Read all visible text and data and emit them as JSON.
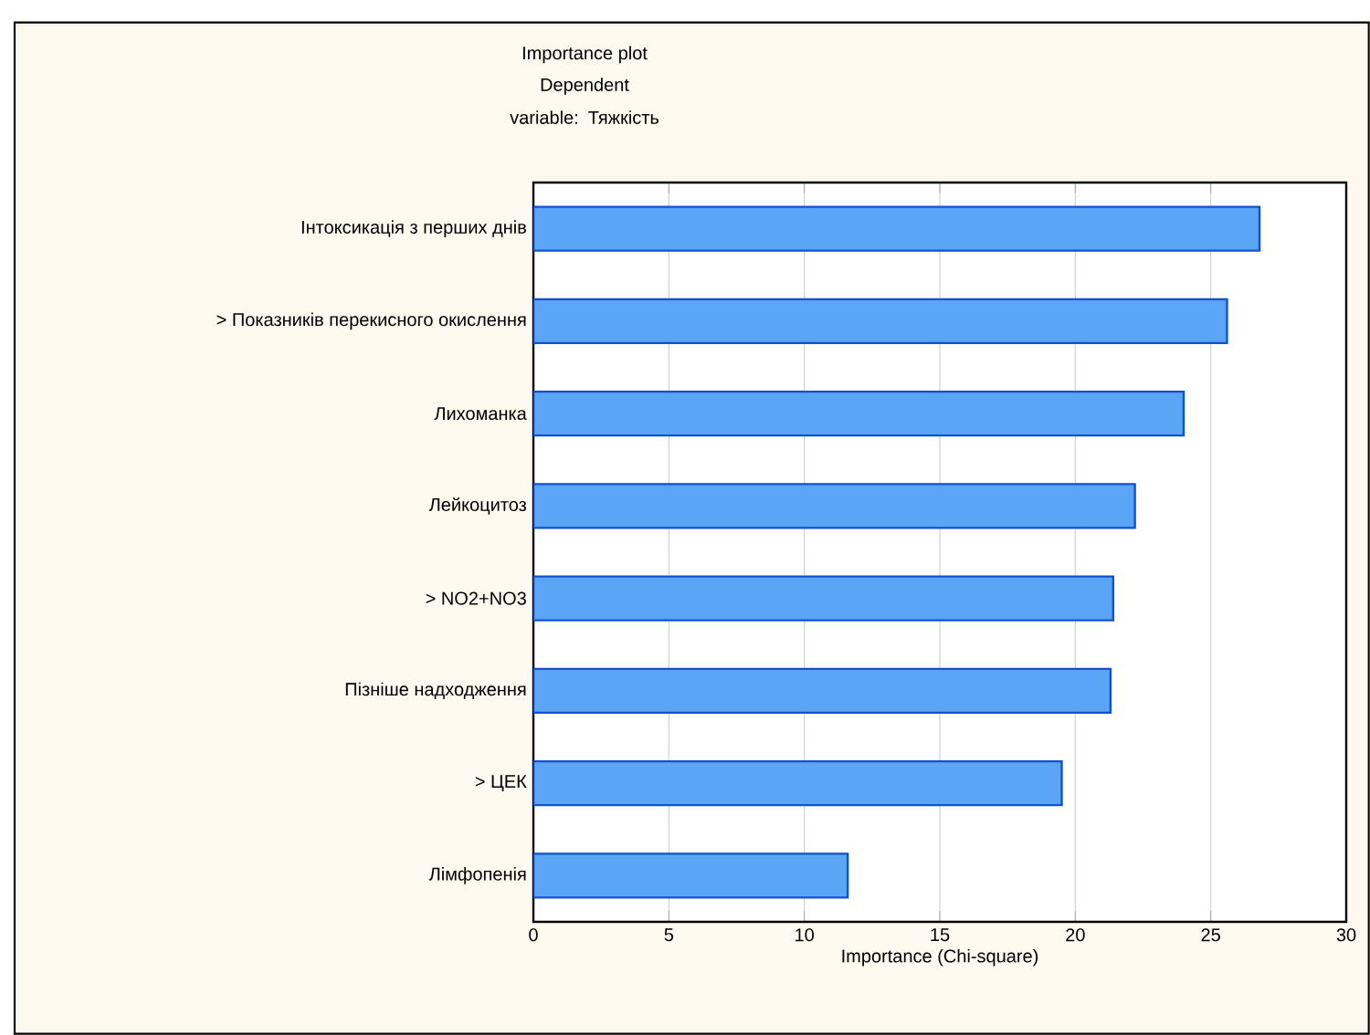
{
  "chart_data": {
    "type": "bar",
    "orientation": "horizontal",
    "title": "Importance plot",
    "subtitle": "Dependent variable: Тяжкість",
    "xlabel": "Importance (Chi-square)",
    "categories": [
      "Інтоксикація з перших днів",
      "> Показників перекисного окислення",
      "Лихоманка",
      "Лейкоцитоз",
      ">  NO2+NO3",
      "Пізніше надходження",
      "> ЦЕК",
      "Лімфопенія"
    ],
    "values": [
      26.8,
      25.6,
      24.0,
      22.2,
      21.4,
      21.3,
      19.5,
      11.6
    ],
    "color": "#5aa5f5",
    "xlim": [
      0,
      30
    ],
    "xticks": [
      0,
      5,
      10,
      15,
      20,
      25,
      30
    ],
    "grid": "x"
  }
}
